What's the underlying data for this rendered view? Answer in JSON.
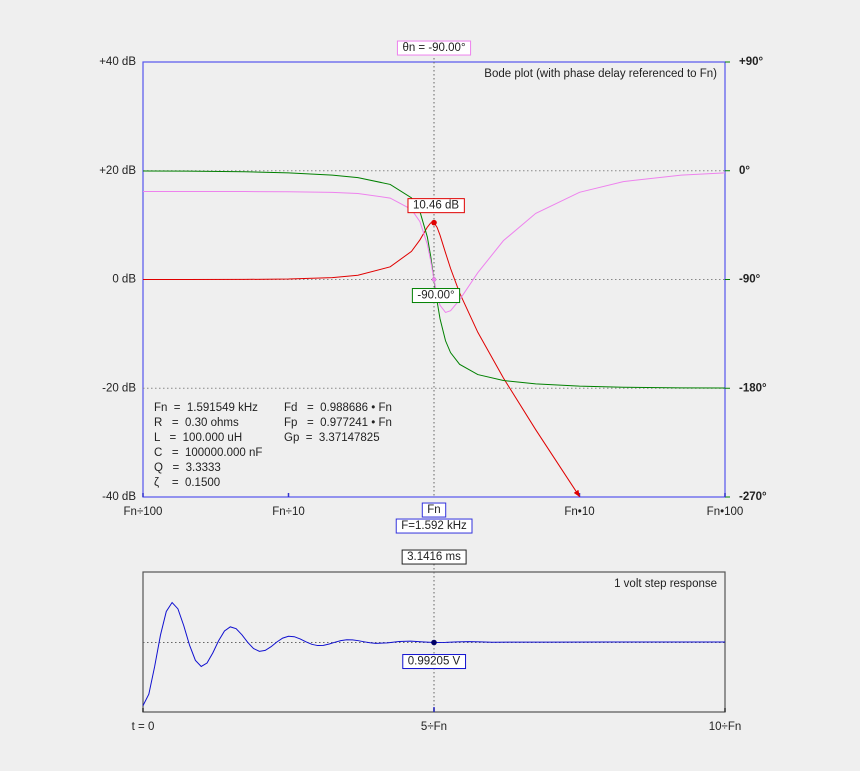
{
  "chart_data": [
    {
      "type": "line",
      "title": "Bode plot (with phase delay referenced to Fn)",
      "xscale": "log",
      "x": [
        0.01,
        0.02,
        0.05,
        0.1,
        0.2,
        0.3,
        0.5,
        0.7,
        0.8,
        0.9,
        0.95,
        1,
        1.05,
        1.1,
        1.2,
        1.3,
        1.5,
        2,
        3,
        5,
        10,
        20,
        50,
        100
      ],
      "xlim": [
        0.01,
        100
      ],
      "xticks": [
        {
          "value": 0.01,
          "label": "Fn÷100"
        },
        {
          "value": 0.1,
          "label": "Fn÷10"
        },
        {
          "value": 10,
          "label": "Fn•10"
        },
        {
          "value": 100,
          "label": "Fn•100"
        }
      ],
      "ylim": [
        -40,
        40
      ],
      "yticks": [
        {
          "value": 40,
          "label": "+40 dB"
        },
        {
          "value": 20,
          "label": "+20 dB"
        },
        {
          "value": 0,
          "label": "0 dB"
        },
        {
          "value": -20,
          "label": "-20 dB"
        },
        {
          "value": -40,
          "label": "-40 dB"
        }
      ],
      "y2lim": [
        -270,
        90
      ],
      "y2ticks": [
        {
          "value": 90,
          "label": "+90°"
        },
        {
          "value": 0,
          "label": "0°"
        },
        {
          "value": -90,
          "label": "-90°"
        },
        {
          "value": -180,
          "label": "-180°"
        },
        {
          "value": -270,
          "label": "-270°"
        }
      ],
      "grid": true,
      "series": [
        {
          "color": "#e00000",
          "values": [
            0.0,
            0.0,
            0.02,
            0.08,
            0.34,
            0.78,
            2.33,
            5.17,
            7.28,
            9.63,
            10.42,
            10.46,
            9.6,
            8.15,
            4.91,
            2.02,
            -2.47,
            -9.71,
            -18.12,
            -27.62,
            -39.92,
            null,
            null,
            null
          ]
        },
        {
          "color": "#008000",
          "axis": "y2",
          "values": [
            -0.17,
            -0.34,
            -0.86,
            -1.74,
            -3.58,
            -5.65,
            -11.31,
            -22.4,
            -33.69,
            -54.87,
            -71.11,
            -90,
            -108.03,
            -122.47,
            -140.71,
            -150.53,
            -160.2,
            -168.69,
            -173.58,
            -176.42,
            -178.26,
            -179.14,
            -179.66,
            -179.83
          ]
        },
        {
          "color": "#ee82ee",
          "axis": "y2",
          "values": [
            -17.19,
            -17.19,
            -17.2,
            -17.4,
            -17.9,
            -18.83,
            -22.62,
            -32.0,
            -42.11,
            -60.97,
            -74.85,
            -90,
            -102.89,
            -111.34,
            -117.26,
            -115.79,
            -106.8,
            -84.35,
            -57.86,
            -35.28,
            -17.83,
            -8.96,
            -3.59,
            -1.8
          ]
        }
      ],
      "cursor": {
        "x": 1,
        "label": "Fn",
        "frequency_label": "F=1.592 kHz",
        "magnitude": 10.46,
        "magnitude_label": "10.46 dB",
        "phase": -90,
        "phase_label": "-90.00°",
        "phase_delay": -90,
        "phase_delay_label": "θn = -90.00°"
      },
      "parameters": [
        "Fn  =  1.591549 kHz",
        "R   =  0.30 ohms",
        "L   =  100.000 uH",
        "C   =  100000.000 nF",
        "Q   =  3.3333",
        "ζ    =  0.1500"
      ],
      "results": [
        "Fd   =  0.988686 • Fn",
        "Fp   =  0.977241 • Fn",
        "Gp  =  3.37147825"
      ]
    },
    {
      "type": "line",
      "title": "1 volt step response",
      "x": [
        0,
        0.1,
        0.2,
        0.3,
        0.4,
        0.5,
        0.6,
        0.7,
        0.8,
        0.9,
        1,
        1.1,
        1.2,
        1.3,
        1.4,
        1.5,
        1.6,
        1.7,
        1.8,
        1.9,
        2,
        2.1,
        2.2,
        2.3,
        2.4,
        2.5,
        2.6,
        2.7,
        2.8,
        2.9,
        3,
        3.1,
        3.2,
        3.3,
        3.4,
        3.5,
        3.6,
        3.7,
        3.8,
        3.9,
        4,
        4.2,
        4.4,
        4.6,
        4.8,
        5,
        5.2,
        5.4,
        5.6,
        5.8,
        6,
        7,
        8,
        9,
        10
      ],
      "values": [
        0,
        0.1796,
        0.6136,
        1.1081,
        1.4794,
        1.6202,
        1.5211,
        1.2573,
        0.9493,
        0.7118,
        0.6155,
        0.6696,
        0.8294,
        1.0211,
        1.1726,
        1.2379,
        1.2092,
        1.1127,
        0.9934,
        0.897,
        0.853,
        0.8677,
        0.926,
        1.0,
        1.0613,
        1.0908,
        1.0835,
        1.0485,
        1.0026,
        0.9636,
        0.9441,
        0.9473,
        0.9684,
        0.9968,
        1.0215,
        1.0344,
        1.0332,
        1.0206,
        1.003,
        0.9874,
        0.9789,
        0.9866,
        1.0074,
        1.0131,
        1.0019,
        0.99205,
        0.9944,
        1.0025,
        1.0051,
        1.0011,
        0.997,
        0.9989,
        0.9996,
        0.9999,
        1.0
      ],
      "color": "#1010d0",
      "xlim": [
        0,
        10
      ],
      "xticks": [
        {
          "value": 0,
          "label": "t = 0"
        },
        {
          "value": 5,
          "label": "5÷Fn"
        },
        {
          "value": 10,
          "label": "10÷Fn"
        }
      ],
      "ylim": [
        -0.1,
        2.1
      ],
      "grid": false,
      "cursor": {
        "x": 5,
        "time_label": "3.1416 ms",
        "value": 0.99205,
        "value_label": "0.99205 V"
      }
    }
  ]
}
